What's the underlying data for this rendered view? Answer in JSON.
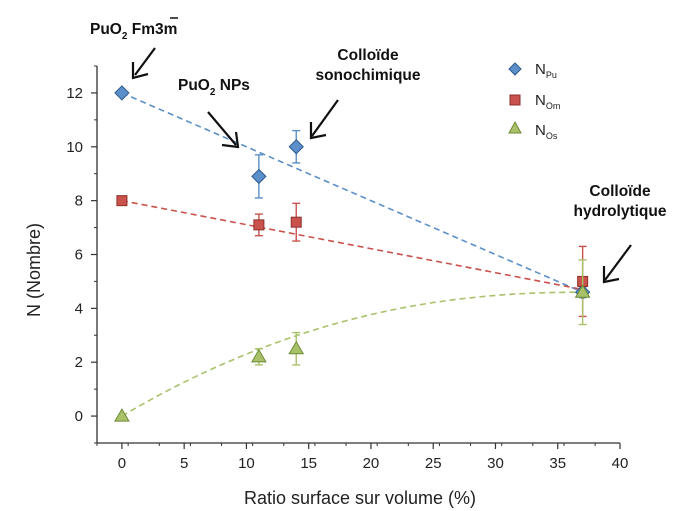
{
  "chart_data": {
    "type": "scatter",
    "xlabel": "Ratio surface sur volume (%)",
    "ylabel": "N (Nombre)",
    "xlim": [
      -2,
      40
    ],
    "ylim": [
      -1,
      13
    ],
    "xticks": [
      0,
      5,
      10,
      15,
      20,
      25,
      30,
      35,
      40
    ],
    "yticks": [
      0,
      2,
      4,
      6,
      8,
      10,
      12
    ],
    "grid": false,
    "legend_position": "top-right",
    "series": [
      {
        "name": "N",
        "name_sub": "Pu",
        "marker": "diamond",
        "color": "#5b8fc9",
        "x": [
          0,
          11,
          14,
          37
        ],
        "y": [
          12,
          8.9,
          10,
          4.6
        ],
        "err": [
          0,
          0.8,
          0.6,
          0.2
        ],
        "trend": [
          [
            0,
            12
          ],
          [
            37,
            4.6
          ]
        ]
      },
      {
        "name": "N",
        "name_sub": "Om",
        "marker": "square",
        "color": "#c9524d",
        "x": [
          0,
          11,
          14,
          37
        ],
        "y": [
          8,
          7.1,
          7.2,
          5
        ],
        "err": [
          0,
          0.4,
          0.7,
          1.3
        ],
        "trend": [
          [
            0,
            8
          ],
          [
            37,
            4.7
          ]
        ]
      },
      {
        "name": "N",
        "name_sub": "Os",
        "marker": "triangle",
        "color": "#a9c26a",
        "x": [
          0,
          11,
          14,
          37
        ],
        "y": [
          0,
          2.2,
          2.5,
          4.6
        ],
        "err": [
          0,
          0.3,
          0.6,
          1.2
        ],
        "trend_curve": true
      }
    ],
    "annotations": [
      {
        "text": "PuO",
        "sub": "2",
        "suffix": " Fm3m",
        "points_to": [
          0,
          12
        ]
      },
      {
        "text": "PuO",
        "sub": "2",
        "suffix": " NPs",
        "points_to": [
          9.2,
          9.9
        ]
      },
      {
        "text": "Colloïde",
        "line2": "sonochimique",
        "points_to": [
          15,
          10
        ]
      },
      {
        "text": "Colloïde",
        "line2": "hydrolytique",
        "points_to": [
          38.6,
          4.8
        ]
      }
    ]
  }
}
